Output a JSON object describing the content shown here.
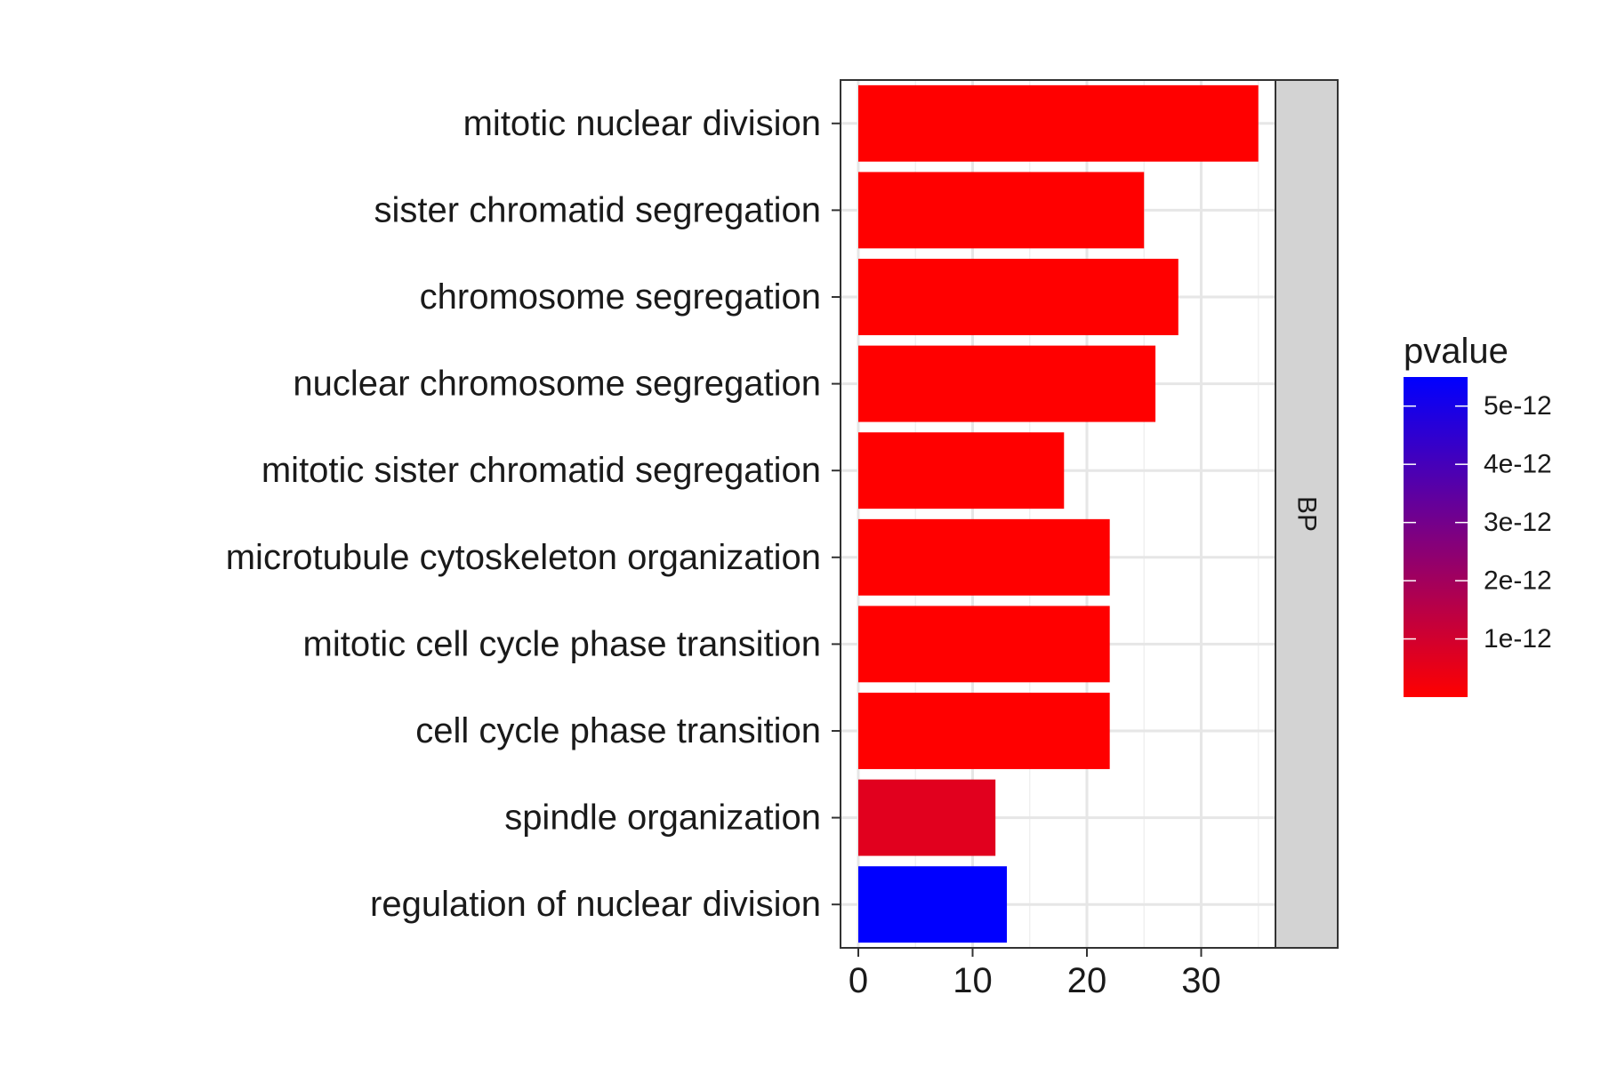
{
  "chart_data": {
    "type": "bar",
    "orientation": "horizontal",
    "categories": [
      "mitotic nuclear division",
      "sister chromatid segregation",
      "chromosome segregation",
      "nuclear chromosome segregation",
      "mitotic sister chromatid segregation",
      "microtubule cytoskeleton organization",
      "mitotic cell cycle phase transition",
      "cell cycle phase transition",
      "spindle organization",
      "regulation of nuclear division"
    ],
    "values": [
      35,
      25,
      28,
      26,
      18,
      22,
      22,
      22,
      12,
      13
    ],
    "pvalues": [
      1e-16,
      1e-15,
      1e-15,
      1e-15,
      1e-15,
      1e-14,
      1e-14,
      1e-14,
      6.5e-13,
      5.5e-12
    ],
    "facet_label": "BP",
    "xlim": [
      0,
      36.5
    ],
    "x_ticks": [
      0,
      10,
      20,
      30
    ],
    "grid": true,
    "legend": {
      "title": "pvalue",
      "position": "right",
      "ticks": [
        {
          "value": 1e-12,
          "label": "1e-12"
        },
        {
          "value": 2e-12,
          "label": "2e-12"
        },
        {
          "value": 3e-12,
          "label": "3e-12"
        },
        {
          "value": 4e-12,
          "label": "4e-12"
        },
        {
          "value": 5e-12,
          "label": "5e-12"
        }
      ],
      "range": [
        1e-16,
        5.5e-12
      ],
      "low_color": "#ff0000",
      "high_color": "#0000ff"
    },
    "title": "",
    "xlabel": "",
    "ylabel": ""
  }
}
